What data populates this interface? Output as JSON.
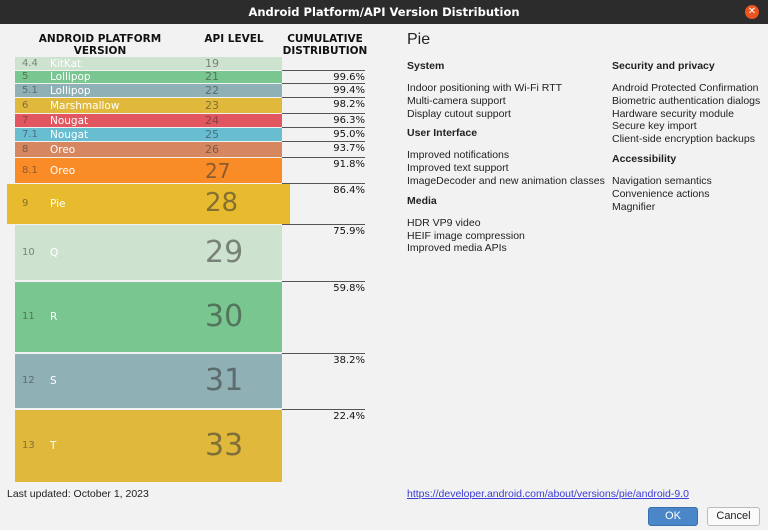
{
  "window": {
    "title": "Android Platform/API Version Distribution",
    "close_icon": "close-icon"
  },
  "table": {
    "headers": {
      "version": "ANDROID PLATFORM VERSION",
      "api": "API LEVEL",
      "cumulative": "CUMULATIVE DISTRIBUTION"
    },
    "rows": [
      {
        "version": "4.4",
        "name": "KitKat",
        "api": "19",
        "cumulative": "",
        "color": "#cde3cf"
      },
      {
        "version": "5",
        "name": "Lollipop",
        "api": "21",
        "cumulative": "99.6%",
        "color": "#79c690"
      },
      {
        "version": "5.1",
        "name": "Lollipop",
        "api": "22",
        "cumulative": "99.4%",
        "color": "#8fb0b5"
      },
      {
        "version": "6",
        "name": "Marshmallow",
        "api": "23",
        "cumulative": "98.2%",
        "color": "#e0b93c"
      },
      {
        "version": "7",
        "name": "Nougat",
        "api": "24",
        "cumulative": "96.3%",
        "color": "#e2565f"
      },
      {
        "version": "7.1",
        "name": "Nougat",
        "api": "25",
        "cumulative": "95.0%",
        "color": "#68bdd1"
      },
      {
        "version": "8",
        "name": "Oreo",
        "api": "26",
        "cumulative": "93.7%",
        "color": "#d7875f"
      },
      {
        "version": "8.1",
        "name": "Oreo",
        "api": "27",
        "cumulative": "91.8%",
        "color": "#fa8c28"
      },
      {
        "version": "9",
        "name": "Pie",
        "api": "28",
        "cumulative": "86.4%",
        "color": "#e8bb2e",
        "selected": true
      },
      {
        "version": "10",
        "name": "Q",
        "api": "29",
        "cumulative": "75.9%",
        "color": "#cde3cf"
      },
      {
        "version": "11",
        "name": "R",
        "api": "30",
        "cumulative": "59.8%",
        "color": "#79c690"
      },
      {
        "version": "12",
        "name": "S",
        "api": "31",
        "cumulative": "38.2%",
        "color": "#8fb0b5"
      },
      {
        "version": "13",
        "name": "T",
        "api": "33",
        "cumulative": "22.4%",
        "color": "#e0b93c"
      }
    ]
  },
  "details": {
    "title": "Pie",
    "left": [
      {
        "heading": "System",
        "items": [
          "Indoor positioning with Wi-Fi RTT",
          "Multi-camera support",
          "Display cutout support"
        ]
      },
      {
        "heading": "User Interface",
        "items": [
          "Improved notifications",
          "Improved text support",
          "ImageDecoder and new animation classes"
        ]
      },
      {
        "heading": "Media",
        "items": [
          "HDR VP9 video",
          "HEIF image compression",
          "Improved media APIs"
        ]
      }
    ],
    "right": [
      {
        "heading": "Security and privacy",
        "items": [
          "Android Protected Confirmation",
          "Biometric authentication dialogs",
          "Hardware security module",
          "Secure key import",
          "Client-side encryption backups"
        ]
      },
      {
        "heading": "Accessibility",
        "items": [
          "Navigation semantics",
          "Convenience actions",
          "Magnifier"
        ]
      }
    ],
    "link": "https://developer.android.com/about/versions/pie/android-9.0"
  },
  "footer": {
    "last_updated": "Last updated: October 1, 2023",
    "ok": "OK",
    "cancel": "Cancel"
  }
}
